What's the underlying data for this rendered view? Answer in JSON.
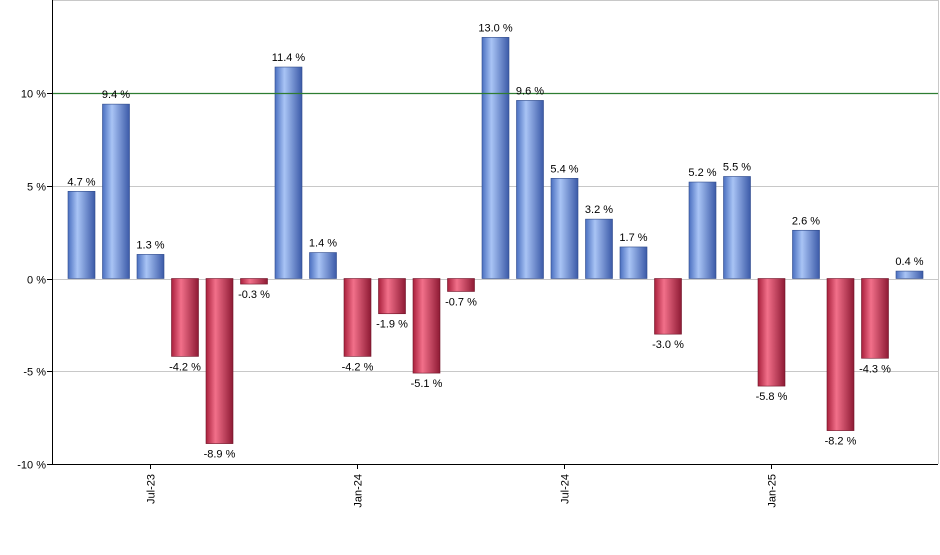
{
  "chart_data": {
    "type": "bar",
    "title": "",
    "xlabel": "",
    "ylabel": "",
    "ylim": [
      -10,
      15
    ],
    "grid": true,
    "legend": "none",
    "reference_line": 10,
    "y_ticks": [
      -10,
      -5,
      0,
      5,
      10
    ],
    "y_tick_labels": [
      "-10 %",
      "-5 %",
      "0 %",
      "5 %",
      "10 %"
    ],
    "x_ticks": [
      {
        "index": 2,
        "label": "Jul-23"
      },
      {
        "index": 8,
        "label": "Jan-24"
      },
      {
        "index": 14,
        "label": "Jul-24"
      },
      {
        "index": 20,
        "label": "Jan-25"
      }
    ],
    "values": [
      4.7,
      9.4,
      1.3,
      -4.2,
      -8.9,
      -0.3,
      11.4,
      1.4,
      -4.2,
      -1.9,
      -5.1,
      -0.7,
      13.0,
      9.6,
      5.4,
      3.2,
      1.7,
      -3.0,
      5.2,
      5.5,
      -5.8,
      2.6,
      -8.2,
      -4.3,
      0.4
    ],
    "value_labels": [
      "4.7 %",
      "9.4 %",
      "1.3 %",
      "-4.2 %",
      "-8.9 %",
      "-0.3 %",
      "11.4 %",
      "1.4 %",
      "-4.2 %",
      "-1.9 %",
      "-5.1 %",
      "-0.7 %",
      "13.0 %",
      "9.6 %",
      "5.4 %",
      "3.2 %",
      "1.7 %",
      "-3.0 %",
      "5.2 %",
      "5.5 %",
      "-5.8 %",
      "2.6 %",
      "-8.2 %",
      "-4.3 %",
      "0.4 %"
    ],
    "colors": {
      "positive": "#6b8fd8",
      "negative": "#c8304e",
      "reference_line": "#2e7d32",
      "grid": "#c8c8c8",
      "axis": "#000000"
    }
  }
}
